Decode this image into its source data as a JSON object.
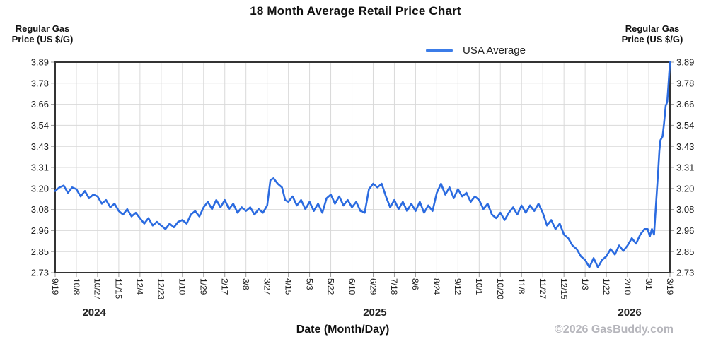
{
  "page": {
    "title": "18 Month Average Retail Price Chart",
    "axis_header_left_line1": "Regular Gas",
    "axis_header_left_line2": "Price (US $/G)",
    "axis_header_right_line1": "Regular Gas",
    "axis_header_right_line2": "Price (US $/G)",
    "legend_label": "USA Average",
    "xlabel": "Date (Month/Day)",
    "copyright": "©2026 GasBuddy.com"
  },
  "colors": {
    "line": "#2b6be0",
    "legend_swatch": "#3b7ce8",
    "grid": "#d9d9d9",
    "frame": "#333333",
    "tick": "#999999",
    "tick_text": "#222222",
    "year_text": "#111111",
    "copyright_text": "#b6b6bc"
  },
  "chart_data": {
    "type": "line",
    "title": "18 Month Average Retail Price Chart",
    "xlabel": "Date (Month/Day)",
    "ylabel": "Regular Gas Price (US $/G)",
    "legend_position": "top-right",
    "grid": true,
    "ylim": [
      2.73,
      3.89
    ],
    "xlim_ticks": [
      0,
      29
    ],
    "y_tick_labels": [
      "3.89",
      "3.78",
      "3.66",
      "3.54",
      "3.43",
      "3.31",
      "3.20",
      "3.08",
      "2.96",
      "2.85",
      "2.73"
    ],
    "x_tick_labels": [
      "9/19",
      "10/8",
      "10/27",
      "11/15",
      "12/4",
      "12/23",
      "1/10",
      "1/29",
      "2/17",
      "3/8",
      "3/27",
      "4/15",
      "5/3",
      "5/22",
      "6/10",
      "6/29",
      "7/18",
      "8/6",
      "8/24",
      "9/12",
      "10/1",
      "10/20",
      "11/8",
      "11/27",
      "12/15",
      "1/3",
      "1/22",
      "2/10",
      "3/1",
      "3/19"
    ],
    "year_labels": [
      {
        "text": "2024",
        "x": 1.84
      },
      {
        "text": "2025",
        "x": 15.08
      },
      {
        "text": "2026",
        "x": 27.1
      }
    ],
    "series": [
      {
        "name": "USA Average",
        "color": "#2b6be0",
        "points": [
          [
            0,
            3.18
          ],
          [
            0.2,
            3.2
          ],
          [
            0.4,
            3.21
          ],
          [
            0.6,
            3.17
          ],
          [
            0.8,
            3.2
          ],
          [
            1,
            3.19
          ],
          [
            1.2,
            3.15
          ],
          [
            1.4,
            3.18
          ],
          [
            1.6,
            3.14
          ],
          [
            1.8,
            3.16
          ],
          [
            2,
            3.15
          ],
          [
            2.2,
            3.11
          ],
          [
            2.4,
            3.13
          ],
          [
            2.6,
            3.09
          ],
          [
            2.8,
            3.11
          ],
          [
            3,
            3.07
          ],
          [
            3.2,
            3.05
          ],
          [
            3.4,
            3.08
          ],
          [
            3.6,
            3.04
          ],
          [
            3.8,
            3.06
          ],
          [
            4,
            3.03
          ],
          [
            4.2,
            3.0
          ],
          [
            4.4,
            3.03
          ],
          [
            4.6,
            2.99
          ],
          [
            4.8,
            3.01
          ],
          [
            5,
            2.99
          ],
          [
            5.2,
            2.97
          ],
          [
            5.4,
            3.0
          ],
          [
            5.6,
            2.98
          ],
          [
            5.8,
            3.01
          ],
          [
            6,
            3.02
          ],
          [
            6.2,
            3.0
          ],
          [
            6.4,
            3.05
          ],
          [
            6.6,
            3.07
          ],
          [
            6.8,
            3.04
          ],
          [
            7,
            3.09
          ],
          [
            7.2,
            3.12
          ],
          [
            7.4,
            3.08
          ],
          [
            7.6,
            3.13
          ],
          [
            7.8,
            3.09
          ],
          [
            8,
            3.13
          ],
          [
            8.2,
            3.08
          ],
          [
            8.4,
            3.11
          ],
          [
            8.6,
            3.06
          ],
          [
            8.8,
            3.09
          ],
          [
            9,
            3.07
          ],
          [
            9.2,
            3.09
          ],
          [
            9.4,
            3.05
          ],
          [
            9.6,
            3.08
          ],
          [
            9.8,
            3.06
          ],
          [
            10,
            3.1
          ],
          [
            10.15,
            3.24
          ],
          [
            10.3,
            3.25
          ],
          [
            10.5,
            3.22
          ],
          [
            10.7,
            3.2
          ],
          [
            10.85,
            3.13
          ],
          [
            11,
            3.12
          ],
          [
            11.2,
            3.15
          ],
          [
            11.4,
            3.1
          ],
          [
            11.6,
            3.13
          ],
          [
            11.8,
            3.08
          ],
          [
            12,
            3.12
          ],
          [
            12.2,
            3.07
          ],
          [
            12.4,
            3.11
          ],
          [
            12.6,
            3.06
          ],
          [
            12.8,
            3.14
          ],
          [
            13,
            3.16
          ],
          [
            13.2,
            3.11
          ],
          [
            13.4,
            3.15
          ],
          [
            13.6,
            3.1
          ],
          [
            13.8,
            3.13
          ],
          [
            14,
            3.09
          ],
          [
            14.2,
            3.12
          ],
          [
            14.4,
            3.07
          ],
          [
            14.6,
            3.06
          ],
          [
            14.8,
            3.19
          ],
          [
            15,
            3.22
          ],
          [
            15.2,
            3.2
          ],
          [
            15.4,
            3.22
          ],
          [
            15.6,
            3.15
          ],
          [
            15.8,
            3.09
          ],
          [
            16,
            3.13
          ],
          [
            16.2,
            3.08
          ],
          [
            16.4,
            3.12
          ],
          [
            16.6,
            3.07
          ],
          [
            16.8,
            3.11
          ],
          [
            17,
            3.07
          ],
          [
            17.2,
            3.12
          ],
          [
            17.4,
            3.06
          ],
          [
            17.6,
            3.1
          ],
          [
            17.8,
            3.07
          ],
          [
            18,
            3.17
          ],
          [
            18.2,
            3.22
          ],
          [
            18.4,
            3.16
          ],
          [
            18.6,
            3.2
          ],
          [
            18.8,
            3.14
          ],
          [
            19,
            3.19
          ],
          [
            19.2,
            3.15
          ],
          [
            19.4,
            3.17
          ],
          [
            19.6,
            3.12
          ],
          [
            19.8,
            3.15
          ],
          [
            20,
            3.13
          ],
          [
            20.2,
            3.08
          ],
          [
            20.4,
            3.11
          ],
          [
            20.6,
            3.05
          ],
          [
            20.8,
            3.03
          ],
          [
            21,
            3.06
          ],
          [
            21.2,
            3.02
          ],
          [
            21.4,
            3.06
          ],
          [
            21.6,
            3.09
          ],
          [
            21.8,
            3.05
          ],
          [
            22,
            3.1
          ],
          [
            22.2,
            3.06
          ],
          [
            22.4,
            3.1
          ],
          [
            22.6,
            3.07
          ],
          [
            22.8,
            3.11
          ],
          [
            23,
            3.06
          ],
          [
            23.2,
            2.99
          ],
          [
            23.4,
            3.02
          ],
          [
            23.6,
            2.97
          ],
          [
            23.8,
            3.0
          ],
          [
            24,
            2.94
          ],
          [
            24.2,
            2.92
          ],
          [
            24.4,
            2.88
          ],
          [
            24.6,
            2.86
          ],
          [
            24.8,
            2.82
          ],
          [
            25,
            2.8
          ],
          [
            25.2,
            2.76
          ],
          [
            25.4,
            2.81
          ],
          [
            25.6,
            2.76
          ],
          [
            25.8,
            2.8
          ],
          [
            26,
            2.82
          ],
          [
            26.2,
            2.86
          ],
          [
            26.4,
            2.83
          ],
          [
            26.6,
            2.88
          ],
          [
            26.8,
            2.85
          ],
          [
            27,
            2.88
          ],
          [
            27.2,
            2.92
          ],
          [
            27.4,
            2.89
          ],
          [
            27.6,
            2.94
          ],
          [
            27.8,
            2.97
          ],
          [
            27.95,
            2.97
          ],
          [
            28.05,
            2.93
          ],
          [
            28.15,
            2.97
          ],
          [
            28.25,
            2.94
          ],
          [
            28.35,
            3.12
          ],
          [
            28.45,
            3.3
          ],
          [
            28.5,
            3.4
          ],
          [
            28.55,
            3.46
          ],
          [
            28.65,
            3.48
          ],
          [
            28.72,
            3.55
          ],
          [
            28.8,
            3.65
          ],
          [
            28.87,
            3.67
          ],
          [
            28.92,
            3.75
          ],
          [
            29,
            3.89
          ]
        ]
      }
    ]
  }
}
